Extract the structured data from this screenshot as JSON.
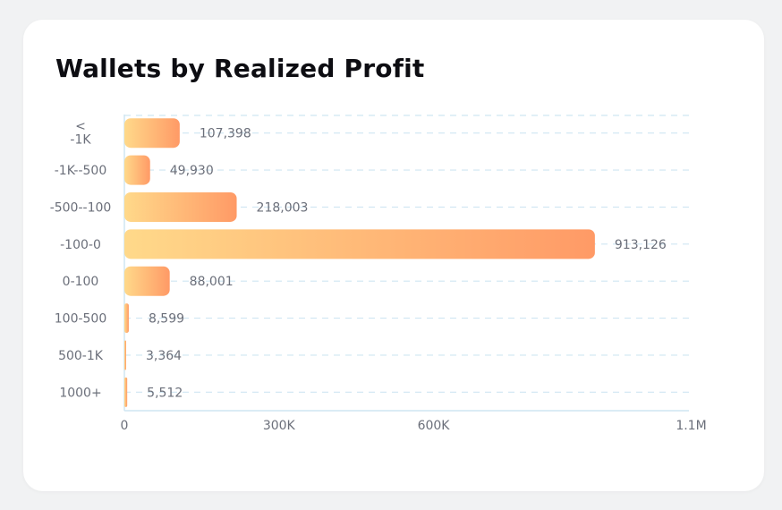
{
  "card": {
    "title": "Wallets by Realized Profit"
  },
  "colors": {
    "bar_start": "#ffd98a",
    "bar_end": "#ff9a66",
    "grid": "#cfe6f2",
    "axis": "#cfe6f2"
  },
  "chart_data": {
    "type": "bar",
    "orientation": "horizontal",
    "title": "Wallets by Realized Profit",
    "categories": [
      "< -1K",
      "-1K--500",
      "-500--100",
      "-100-0",
      "0-100",
      "100-500",
      "500-1K",
      "1000+"
    ],
    "category_lines": [
      [
        "<",
        "-1K"
      ],
      [
        "-1K--500"
      ],
      [
        "-500--100"
      ],
      [
        "-100-0"
      ],
      [
        "0-100"
      ],
      [
        "100-500"
      ],
      [
        "500-1K"
      ],
      [
        "1000+"
      ]
    ],
    "values": [
      107398,
      49930,
      218003,
      913126,
      88001,
      8599,
      3364,
      5512
    ],
    "value_labels": [
      "107,398",
      "49,930",
      "218,003",
      "913,126",
      "88,001",
      "8,599",
      "3,364",
      "5,512"
    ],
    "x_ticks": [
      0,
      300000,
      600000,
      1100000
    ],
    "x_tick_labels": [
      "0",
      "300K",
      "600K",
      "1.1M"
    ],
    "xlim": [
      0,
      1100000
    ],
    "grid": true,
    "grid_style": "dashed",
    "legend": "none"
  }
}
